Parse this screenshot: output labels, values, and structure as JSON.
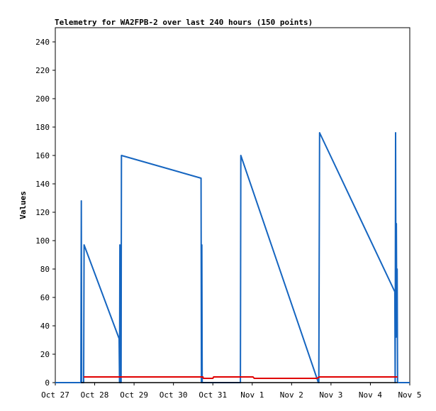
{
  "chart_data": {
    "type": "line",
    "title": "Telemetry for WA2FPB-2 over last 240 hours (150 points)",
    "ylabel": "Values",
    "xlabel": "",
    "xlim": [
      "Oct 27",
      "Nov 5"
    ],
    "ylim": [
      0,
      250
    ],
    "grid": false,
    "legend": "none",
    "x_ticks": [
      "Oct 27",
      "Oct 28",
      "Oct 29",
      "Oct 30",
      "Oct 31",
      "Nov 1",
      "Nov 2",
      "Nov 3",
      "Nov 4",
      "Nov 5"
    ],
    "y_ticks": [
      0,
      20,
      40,
      60,
      80,
      100,
      120,
      140,
      160,
      180,
      200,
      220,
      240
    ],
    "series": [
      {
        "color": "#1565c0",
        "points": [
          [
            0.0,
            0
          ],
          [
            0.16,
            0
          ],
          [
            0.2,
            0
          ],
          [
            0.65,
            0
          ],
          [
            0.66,
            128
          ],
          [
            0.67,
            0
          ],
          [
            0.72,
            0
          ],
          [
            0.73,
            97
          ],
          [
            1.62,
            31
          ],
          [
            1.63,
            0
          ],
          [
            1.64,
            97
          ],
          [
            1.65,
            0
          ],
          [
            1.66,
            95
          ],
          [
            1.67,
            0
          ],
          [
            1.68,
            160
          ],
          [
            3.7,
            144
          ],
          [
            3.71,
            0
          ],
          [
            3.72,
            97
          ],
          [
            3.73,
            0
          ],
          [
            3.75,
            0
          ],
          [
            4.7,
            0
          ],
          [
            4.71,
            160
          ],
          [
            6.68,
            0
          ],
          [
            6.69,
            0
          ],
          [
            6.71,
            176
          ],
          [
            8.62,
            64
          ],
          [
            8.63,
            0
          ],
          [
            8.64,
            176
          ],
          [
            8.65,
            32
          ],
          [
            8.66,
            112
          ],
          [
            8.67,
            40
          ],
          [
            8.68,
            80
          ],
          [
            8.69,
            0
          ],
          [
            9.0,
            0
          ]
        ]
      },
      {
        "color": "#000000",
        "points": [
          [
            0.65,
            0
          ],
          [
            8.69,
            0
          ]
        ]
      },
      {
        "color": "#e00000",
        "points": [
          [
            0.72,
            4
          ],
          [
            3.75,
            4
          ],
          [
            3.76,
            3
          ],
          [
            4.0,
            3
          ],
          [
            4.02,
            4
          ],
          [
            4.7,
            4
          ],
          [
            5.02,
            4
          ],
          [
            5.05,
            3
          ],
          [
            6.65,
            3
          ],
          [
            6.7,
            4
          ],
          [
            8.69,
            4
          ]
        ]
      }
    ]
  }
}
